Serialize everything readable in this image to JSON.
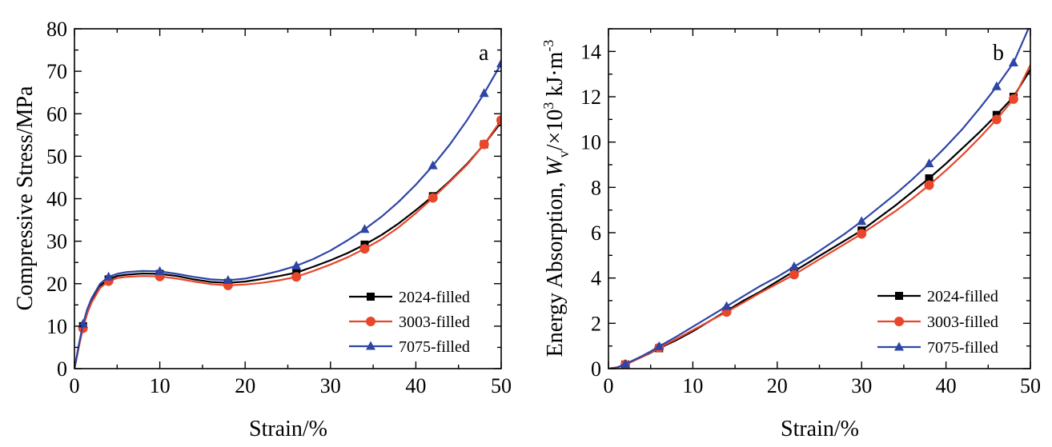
{
  "chart_data": [
    {
      "type": "line",
      "panel_label": "a",
      "xlabel": "Strain/%",
      "ylabel": "Compressive Stress/MPa",
      "xlim": [
        0,
        50
      ],
      "ylim": [
        0,
        80
      ],
      "xticks": [
        0,
        10,
        20,
        30,
        40,
        50
      ],
      "yticks": [
        0,
        10,
        20,
        30,
        40,
        50,
        60,
        70,
        80
      ],
      "grid": false,
      "legend_position": "bottom-right",
      "series": [
        {
          "name": "2024-filled",
          "color": "#000000",
          "marker": "square",
          "x": [
            0,
            0.5,
            1,
            1.5,
            2,
            3,
            4,
            5,
            6,
            8,
            10,
            12,
            14,
            16,
            18,
            20,
            22,
            24,
            26,
            28,
            30,
            32,
            34,
            36,
            38,
            40,
            42,
            44,
            46,
            48,
            50
          ],
          "y": [
            0,
            5,
            10,
            13.5,
            16,
            19.5,
            21,
            21.8,
            22.1,
            22.4,
            22.3,
            21.8,
            21,
            20.4,
            20.2,
            20.5,
            21.1,
            21.8,
            22.6,
            24,
            25.5,
            27.2,
            29.2,
            31.5,
            34.2,
            37.3,
            40.6,
            44.2,
            48.2,
            52.8,
            58
          ]
        },
        {
          "name": "3003-filled",
          "color": "#e8472c",
          "marker": "circle",
          "x": [
            0,
            0.5,
            1,
            1.5,
            2,
            3,
            4,
            5,
            6,
            8,
            10,
            12,
            14,
            16,
            18,
            20,
            22,
            24,
            26,
            28,
            30,
            32,
            34,
            36,
            38,
            40,
            42,
            44,
            46,
            48,
            50
          ],
          "y": [
            0,
            5,
            9.5,
            13,
            15.5,
            19,
            20.6,
            21.3,
            21.6,
            21.8,
            21.7,
            21.2,
            20.5,
            19.9,
            19.6,
            19.8,
            20.2,
            20.8,
            21.6,
            23,
            24.5,
            26.2,
            28.2,
            30.5,
            33.3,
            36.6,
            40.2,
            44,
            48,
            52.8,
            58.5
          ]
        },
        {
          "name": "7075-filled",
          "color": "#2e45a6",
          "marker": "triangle",
          "x": [
            0,
            0.5,
            1,
            1.5,
            2,
            3,
            4,
            5,
            6,
            8,
            10,
            12,
            14,
            16,
            18,
            20,
            22,
            24,
            26,
            28,
            30,
            32,
            34,
            36,
            38,
            40,
            42,
            44,
            46,
            48,
            50
          ],
          "y": [
            0,
            5.5,
            10.5,
            14,
            16.5,
            20,
            21.6,
            22.3,
            22.7,
            23,
            22.9,
            22.3,
            21.6,
            21,
            20.8,
            21.2,
            22,
            23,
            24.2,
            25.8,
            27.8,
            30.2,
            32.8,
            35.8,
            39.3,
            43.3,
            47.8,
            52.8,
            58.5,
            64.8,
            71.8
          ]
        }
      ]
    },
    {
      "type": "line",
      "panel_label": "b",
      "xlabel": "Strain/%",
      "ylabel_prefix": "Energy Absorption, ",
      "ylabel_var": "W",
      "ylabel_sub": "v",
      "ylabel_mid": "/×10",
      "ylabel_exp": "3",
      "ylabel_unit": " kJ·m",
      "ylabel_unit_exp": "-3",
      "xlim": [
        0,
        50
      ],
      "ylim": [
        0,
        15
      ],
      "xticks": [
        0,
        10,
        20,
        30,
        40,
        50
      ],
      "yticks": [
        0,
        2,
        4,
        6,
        8,
        10,
        12,
        14
      ],
      "grid": false,
      "legend_position": "bottom-right",
      "series": [
        {
          "name": "2024-filled",
          "color": "#000000",
          "marker": "square",
          "x": [
            0,
            1,
            2,
            3,
            4,
            5,
            6,
            8,
            10,
            12,
            14,
            16,
            18,
            20,
            22,
            24,
            26,
            28,
            30,
            32,
            34,
            36,
            38,
            40,
            42,
            44,
            46,
            48,
            50
          ],
          "y": [
            0,
            0.05,
            0.18,
            0.35,
            0.52,
            0.7,
            0.9,
            1.25,
            1.65,
            2.1,
            2.55,
            3.0,
            3.4,
            3.85,
            4.3,
            4.75,
            5.2,
            5.65,
            6.1,
            6.65,
            7.2,
            7.8,
            8.4,
            9.05,
            9.75,
            10.45,
            11.2,
            12.0,
            13.2
          ]
        },
        {
          "name": "3003-filled",
          "color": "#e8472c",
          "marker": "circle",
          "x": [
            0,
            1,
            2,
            3,
            4,
            5,
            6,
            8,
            10,
            12,
            14,
            16,
            18,
            20,
            22,
            24,
            26,
            28,
            30,
            32,
            34,
            36,
            38,
            40,
            42,
            44,
            46,
            48,
            50
          ],
          "y": [
            0,
            0.05,
            0.18,
            0.35,
            0.52,
            0.72,
            0.92,
            1.3,
            1.7,
            2.1,
            2.5,
            2.92,
            3.35,
            3.75,
            4.15,
            4.6,
            5.05,
            5.5,
            5.95,
            6.45,
            6.95,
            7.5,
            8.1,
            8.75,
            9.45,
            10.2,
            11.0,
            11.9,
            13.4
          ]
        },
        {
          "name": "7075-filled",
          "color": "#2e45a6",
          "marker": "triangle",
          "x": [
            0,
            1,
            2,
            3,
            4,
            5,
            6,
            8,
            10,
            12,
            14,
            16,
            18,
            20,
            22,
            24,
            26,
            28,
            30,
            32,
            34,
            36,
            38,
            40,
            42,
            44,
            46,
            48,
            50
          ],
          "y": [
            0,
            0.05,
            0.2,
            0.38,
            0.56,
            0.76,
            0.98,
            1.4,
            1.85,
            2.3,
            2.75,
            3.2,
            3.65,
            4.05,
            4.5,
            4.95,
            5.45,
            5.95,
            6.5,
            7.1,
            7.7,
            8.35,
            9.05,
            9.8,
            10.6,
            11.5,
            12.45,
            13.5,
            15.2
          ]
        }
      ]
    }
  ]
}
